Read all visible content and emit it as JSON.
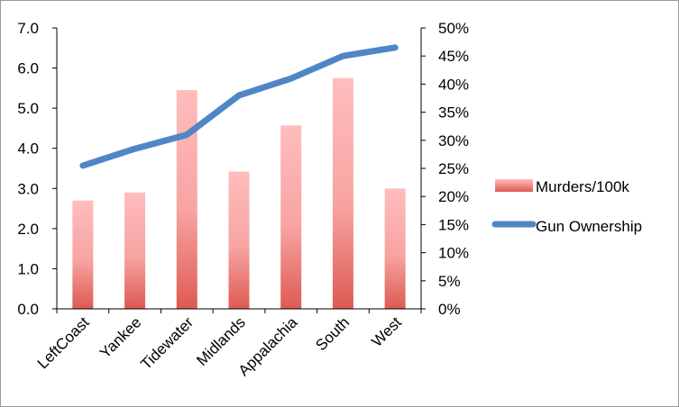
{
  "chart_data": {
    "type": "bar",
    "title": "",
    "xlabel": "",
    "ylabel": "",
    "categories": [
      "LeftCoast",
      "Yankee",
      "Tidewater",
      "Midlands",
      "Appalachia",
      "South",
      "West"
    ],
    "series": [
      {
        "name": "Murders/100k",
        "type": "bar",
        "axis": "left",
        "values": [
          2.7,
          2.9,
          5.45,
          3.42,
          4.57,
          5.75,
          3.0
        ],
        "color": "#e8605a"
      },
      {
        "name": "Gun Ownership",
        "type": "line",
        "axis": "right",
        "values": [
          0.255,
          0.285,
          0.31,
          0.38,
          0.41,
          0.45,
          0.465
        ],
        "color": "#4f86c6"
      }
    ],
    "ylim": [
      0,
      7
    ],
    "yticks": [
      "0.0",
      "1.0",
      "2.0",
      "3.0",
      "4.0",
      "5.0",
      "6.0",
      "7.0"
    ],
    "y2lim": [
      0,
      0.5
    ],
    "y2ticks": [
      "0%",
      "5%",
      "10%",
      "15%",
      "20%",
      "25%",
      "30%",
      "35%",
      "40%",
      "45%",
      "50%"
    ],
    "grid": false,
    "legend_position": "right"
  }
}
